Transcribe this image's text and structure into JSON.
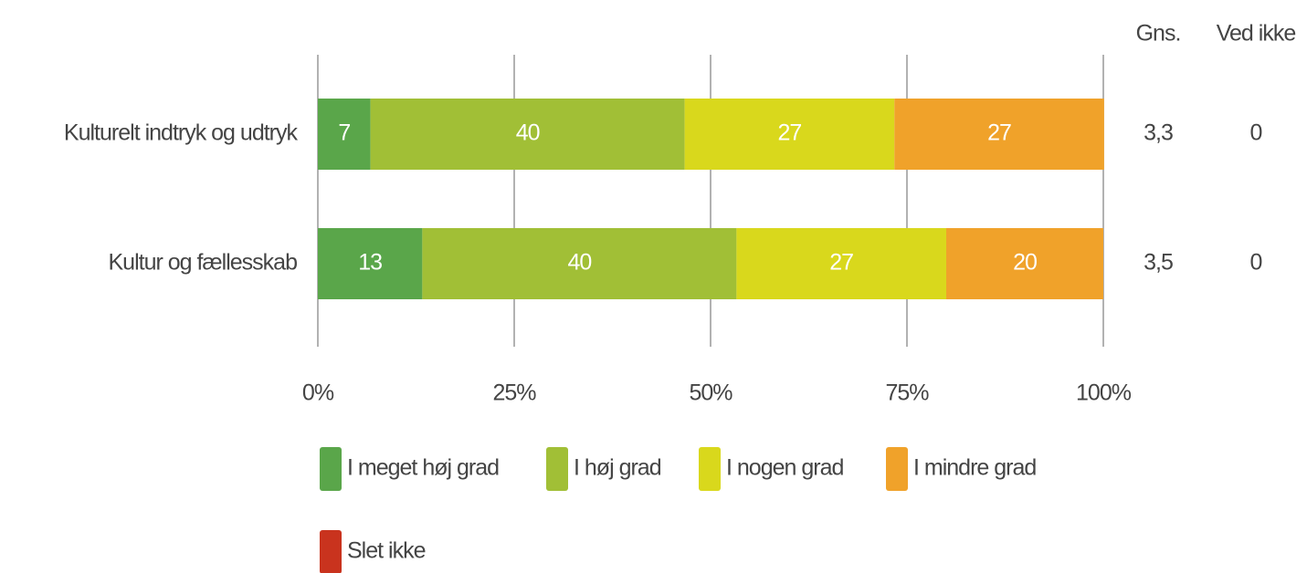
{
  "chart_data": {
    "type": "stacked_barh",
    "categories": [
      "Kulturelt indtryk og udtryk",
      "Kultur og fællesskab"
    ],
    "series": [
      {
        "name": "I meget høj grad",
        "color": "#5aa64a",
        "values": [
          6.7,
          13.3
        ],
        "value_labels": [
          "7",
          "13"
        ]
      },
      {
        "name": "I høj grad",
        "color": "#a1bf36",
        "values": [
          40,
          40
        ],
        "value_labels": [
          "40",
          "40"
        ]
      },
      {
        "name": "I nogen grad",
        "color": "#d9d81c",
        "values": [
          26.7,
          26.7
        ],
        "value_labels": [
          "27",
          "27"
        ]
      },
      {
        "name": "I mindre grad",
        "color": "#f0a22a",
        "values": [
          26.7,
          20
        ],
        "value_labels": [
          "27",
          "20"
        ]
      },
      {
        "name": "Slet ikke",
        "color": "#c9331e",
        "values": [
          0,
          0
        ]
      }
    ],
    "xlim": [
      0,
      100
    ],
    "xticks": [
      {
        "value": 0,
        "label": "0%"
      },
      {
        "value": 25,
        "label": "25%"
      },
      {
        "value": 50,
        "label": "50%"
      },
      {
        "value": 75,
        "label": "75%"
      },
      {
        "value": 100,
        "label": "100%"
      }
    ],
    "grid": true,
    "extra_columns": [
      {
        "name": "Gns.",
        "values": [
          3.3,
          3.5
        ],
        "value_labels": [
          "3,3",
          "3,5"
        ]
      },
      {
        "name": "Ved ikke",
        "values": [
          0,
          0
        ]
      }
    ]
  }
}
